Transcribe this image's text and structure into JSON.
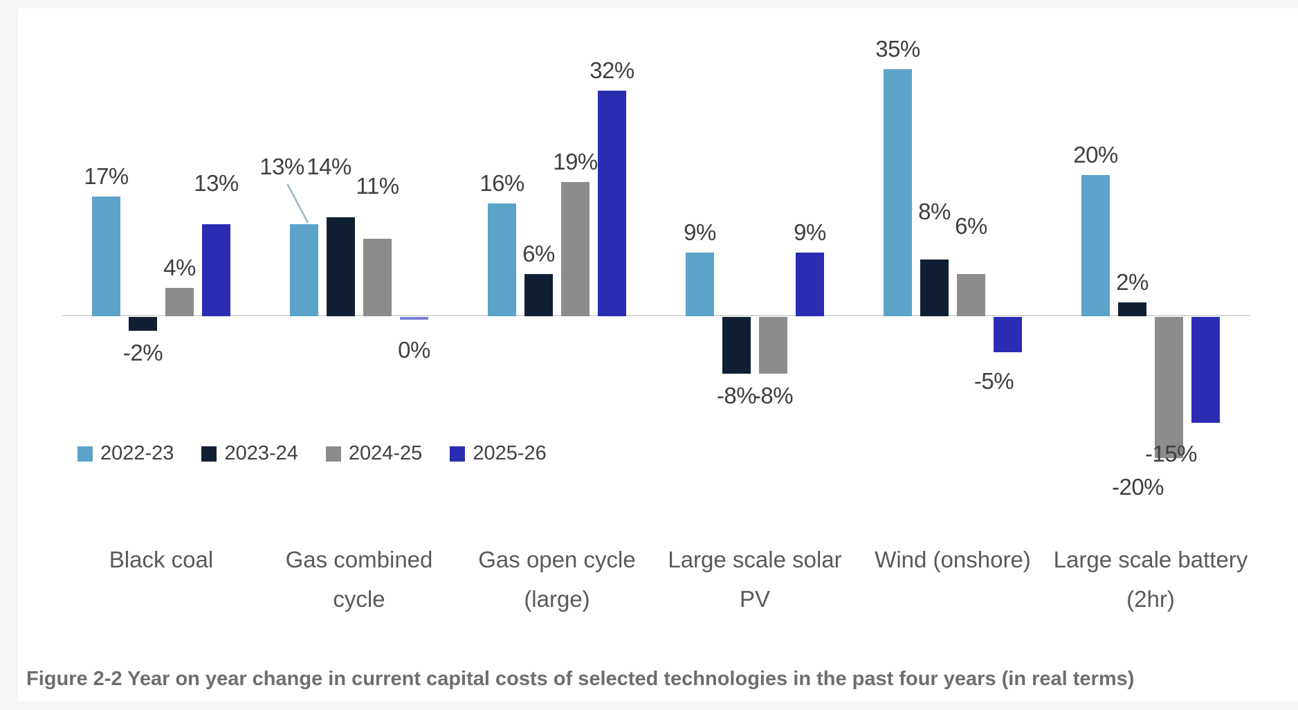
{
  "chart_data": {
    "type": "bar",
    "categories": [
      "Black coal",
      "Gas combined cycle",
      "Gas open cycle (large)",
      "Large scale solar PV",
      "Wind (onshore)",
      "Large scale battery (2hr)"
    ],
    "series": [
      {
        "name": "2022-23",
        "color": "#5BA3C9",
        "values": [
          17,
          13,
          16,
          9,
          35,
          20
        ],
        "labels": [
          "17%",
          "13%",
          "16%",
          "9%",
          "35%",
          "20%"
        ]
      },
      {
        "name": "2023-24",
        "color": "#101F33",
        "values": [
          -2,
          14,
          6,
          -8,
          8,
          2
        ],
        "labels": [
          "-2%",
          "14%",
          "6%",
          "-8%",
          "8%",
          "2%"
        ]
      },
      {
        "name": "2024-25",
        "color": "#8C8C8C",
        "values": [
          4,
          11,
          19,
          -8,
          6,
          -20
        ],
        "labels": [
          "4%",
          "11%",
          "19%",
          "-8%",
          "6%",
          "-20%"
        ]
      },
      {
        "name": "2025-26",
        "color": "#2A2DB2",
        "values": [
          13,
          0,
          32,
          9,
          -5,
          -15
        ],
        "labels": [
          "13%",
          "0%",
          "32%",
          "9%",
          "-5%",
          "-15%"
        ]
      }
    ],
    "unit": "%",
    "ylim": [
      -20,
      35
    ],
    "gridlines": false,
    "legend_position": "bottom-left",
    "axis_color": "#D9D9D9",
    "zero_bar_color": "#7B7FD6",
    "leader_line_color": "#9FB6C2"
  },
  "caption": "Figure 2-2 Year on year change in current capital costs of selected technologies in the past four years (in real terms)"
}
